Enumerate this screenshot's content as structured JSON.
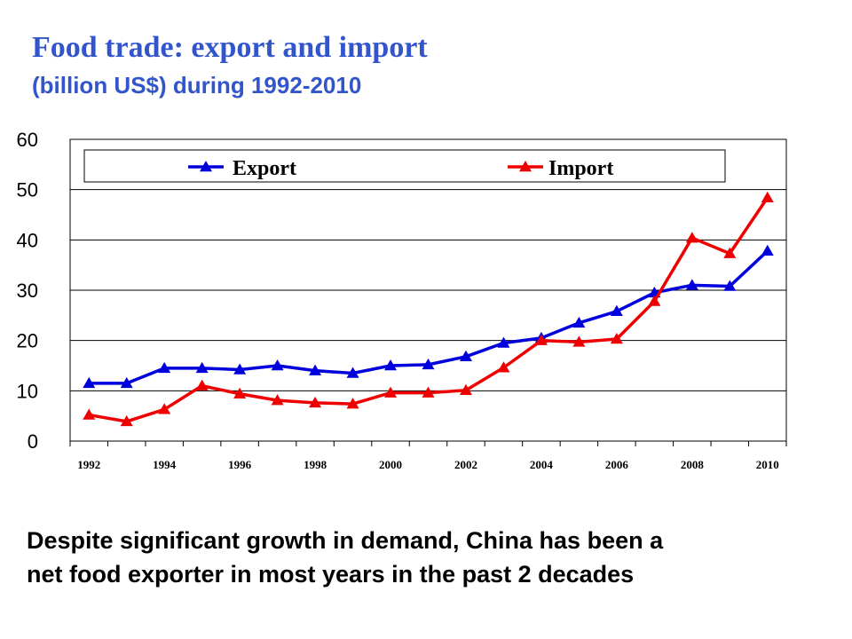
{
  "title": "Food trade: export and import",
  "subtitle": "(billion US$) during 1992-2010",
  "caption": {
    "line1": "Despite significant growth in demand, China has been a",
    "line2": "net food exporter in most years in the past 2 decades"
  },
  "chart_data": {
    "type": "line",
    "x": [
      1992,
      1993,
      1994,
      1995,
      1996,
      1997,
      1998,
      1999,
      2000,
      2001,
      2002,
      2003,
      2004,
      2005,
      2006,
      2007,
      2008,
      2009,
      2010
    ],
    "x_tick_labels": [
      "1992",
      "1994",
      "1996",
      "1998",
      "2000",
      "2002",
      "2004",
      "2006",
      "2008",
      "2010"
    ],
    "y_tick_labels": [
      "0",
      "10",
      "20",
      "30",
      "40",
      "50",
      "60"
    ],
    "ylim": [
      0,
      60
    ],
    "grid": true,
    "legend_position": "top",
    "series": [
      {
        "name": "Export",
        "color": "#0000dd",
        "values": [
          11.5,
          11.5,
          14.5,
          14.5,
          14.2,
          15.0,
          14.0,
          13.5,
          15.0,
          15.2,
          16.8,
          19.5,
          20.5,
          23.5,
          25.8,
          29.5,
          31.0,
          30.8,
          37.8
        ]
      },
      {
        "name": "Import",
        "color": "#ee0000",
        "values": [
          5.2,
          3.9,
          6.3,
          11.0,
          9.4,
          8.1,
          7.6,
          7.4,
          9.6,
          9.6,
          10.1,
          14.6,
          20.0,
          19.7,
          20.3,
          27.8,
          40.4,
          37.3,
          48.4
        ]
      }
    ]
  }
}
